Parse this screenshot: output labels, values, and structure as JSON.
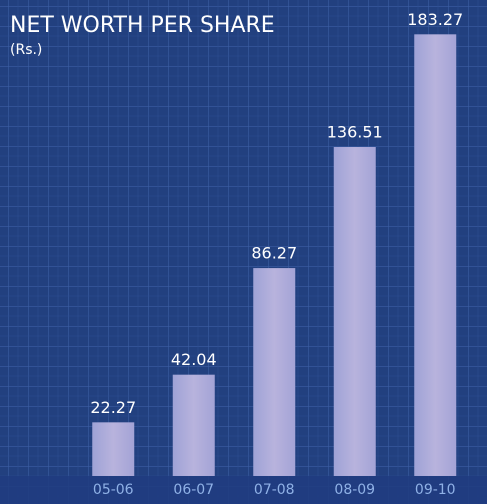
{
  "chart_data": {
    "type": "bar",
    "title": "NET WORTH PER SHARE",
    "subtitle": "(Rs.)",
    "categories": [
      "05-06",
      "06-07",
      "07-08",
      "08-09",
      "09-10"
    ],
    "values": [
      22.27,
      42.04,
      86.27,
      136.51,
      183.27
    ],
    "color": "#aaa8d8"
  }
}
